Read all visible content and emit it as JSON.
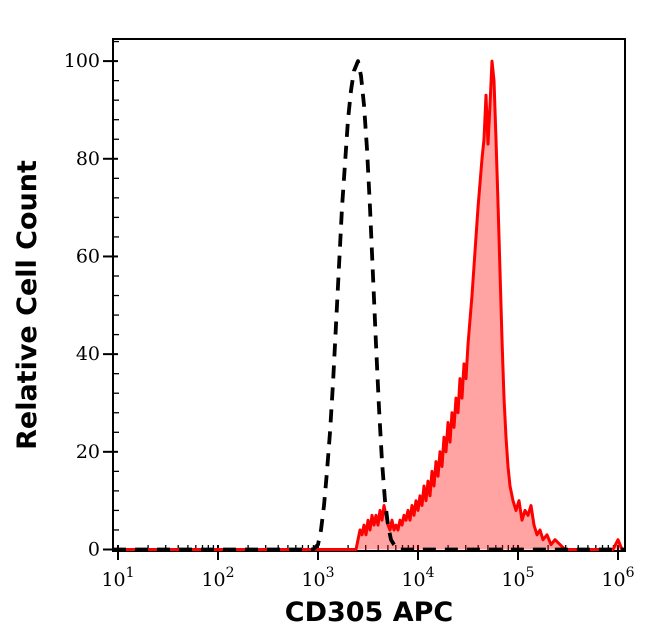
{
  "figure": {
    "background": "#ffffff",
    "frame_color": "#000000"
  },
  "chart_data": {
    "type": "area",
    "subtype": "flow-cytometry-histogram",
    "title": "",
    "xlabel": "CD305 APC",
    "ylabel": "Relative Cell Count",
    "x_scale": "log10",
    "x_range_log10": [
      0.95,
      6.07
    ],
    "x_major_tick_exponents": [
      1,
      2,
      3,
      4,
      5,
      6
    ],
    "x_tick_base": "10",
    "y_range": [
      0,
      104.8
    ],
    "y_major_ticks": [
      0,
      20,
      40,
      60,
      80,
      100
    ],
    "y_minor_step": 4,
    "grid": false,
    "legend": "none",
    "series": [
      {
        "name": "dashed-black-curve",
        "style": "dashed",
        "color": "#000000",
        "fill": "none",
        "line_width": 3.8,
        "dash_pattern": [
          13,
          9
        ],
        "points_log10x_y": [
          [
            0.95,
            0
          ],
          [
            2.95,
            0
          ],
          [
            3.0,
            1
          ],
          [
            3.03,
            4
          ],
          [
            3.06,
            9
          ],
          [
            3.09,
            16
          ],
          [
            3.12,
            24
          ],
          [
            3.15,
            34
          ],
          [
            3.18,
            46
          ],
          [
            3.21,
            58
          ],
          [
            3.24,
            70
          ],
          [
            3.27,
            79
          ],
          [
            3.3,
            88
          ],
          [
            3.33,
            94
          ],
          [
            3.36,
            98
          ],
          [
            3.4,
            100
          ],
          [
            3.43,
            97
          ],
          [
            3.46,
            91
          ],
          [
            3.49,
            82
          ],
          [
            3.52,
            70
          ],
          [
            3.55,
            56
          ],
          [
            3.58,
            42
          ],
          [
            3.61,
            29
          ],
          [
            3.64,
            18
          ],
          [
            3.67,
            10
          ],
          [
            3.7,
            5
          ],
          [
            3.73,
            2
          ],
          [
            3.76,
            1
          ],
          [
            3.8,
            0
          ],
          [
            6.07,
            0
          ]
        ]
      },
      {
        "name": "red-filled-curve",
        "style": "solid",
        "color": "#ff0000",
        "fill": "rgba(255,0,0,0.36)",
        "line_width": 3,
        "points_log10x_y": [
          [
            0.95,
            0
          ],
          [
            3.38,
            0
          ],
          [
            3.4,
            2
          ],
          [
            3.42,
            4
          ],
          [
            3.44,
            3
          ],
          [
            3.46,
            5
          ],
          [
            3.48,
            3
          ],
          [
            3.5,
            6
          ],
          [
            3.52,
            4
          ],
          [
            3.54,
            7
          ],
          [
            3.56,
            5
          ],
          [
            3.58,
            7
          ],
          [
            3.6,
            5
          ],
          [
            3.62,
            8
          ],
          [
            3.64,
            6
          ],
          [
            3.66,
            9
          ],
          [
            3.68,
            7
          ],
          [
            3.7,
            5
          ],
          [
            3.72,
            4
          ],
          [
            3.74,
            6
          ],
          [
            3.76,
            4
          ],
          [
            3.78,
            5
          ],
          [
            3.8,
            4
          ],
          [
            3.82,
            6
          ],
          [
            3.84,
            5
          ],
          [
            3.86,
            7
          ],
          [
            3.88,
            6
          ],
          [
            3.9,
            8
          ],
          [
            3.92,
            6
          ],
          [
            3.94,
            9
          ],
          [
            3.96,
            7
          ],
          [
            3.98,
            10
          ],
          [
            4.0,
            8
          ],
          [
            4.02,
            11
          ],
          [
            4.04,
            9
          ],
          [
            4.06,
            13
          ],
          [
            4.08,
            10
          ],
          [
            4.1,
            14
          ],
          [
            4.12,
            11
          ],
          [
            4.14,
            16
          ],
          [
            4.16,
            13
          ],
          [
            4.18,
            18
          ],
          [
            4.2,
            15
          ],
          [
            4.22,
            20
          ],
          [
            4.24,
            17
          ],
          [
            4.26,
            23
          ],
          [
            4.28,
            20
          ],
          [
            4.3,
            26
          ],
          [
            4.32,
            22
          ],
          [
            4.34,
            28
          ],
          [
            4.36,
            25
          ],
          [
            4.38,
            31
          ],
          [
            4.4,
            28
          ],
          [
            4.42,
            35
          ],
          [
            4.44,
            31
          ],
          [
            4.46,
            38
          ],
          [
            4.48,
            35
          ],
          [
            4.5,
            42
          ],
          [
            4.52,
            47
          ],
          [
            4.54,
            52
          ],
          [
            4.56,
            58
          ],
          [
            4.58,
            64
          ],
          [
            4.6,
            70
          ],
          [
            4.62,
            75
          ],
          [
            4.64,
            80
          ],
          [
            4.66,
            84
          ],
          [
            4.68,
            93
          ],
          [
            4.7,
            83
          ],
          [
            4.72,
            91
          ],
          [
            4.74,
            100
          ],
          [
            4.76,
            96
          ],
          [
            4.78,
            84
          ],
          [
            4.8,
            71
          ],
          [
            4.82,
            57
          ],
          [
            4.84,
            43
          ],
          [
            4.86,
            31
          ],
          [
            4.88,
            23
          ],
          [
            4.9,
            17
          ],
          [
            4.92,
            13
          ],
          [
            4.95,
            10
          ],
          [
            4.98,
            8
          ],
          [
            5.01,
            10
          ],
          [
            5.04,
            6
          ],
          [
            5.07,
            8
          ],
          [
            5.1,
            7
          ],
          [
            5.13,
            9
          ],
          [
            5.16,
            5
          ],
          [
            5.19,
            3
          ],
          [
            5.22,
            4
          ],
          [
            5.25,
            2
          ],
          [
            5.29,
            3
          ],
          [
            5.33,
            1
          ],
          [
            5.37,
            2
          ],
          [
            5.42,
            1
          ],
          [
            5.47,
            0
          ],
          [
            5.95,
            0
          ],
          [
            6.0,
            2
          ],
          [
            6.04,
            0
          ],
          [
            6.07,
            0
          ]
        ]
      }
    ]
  }
}
